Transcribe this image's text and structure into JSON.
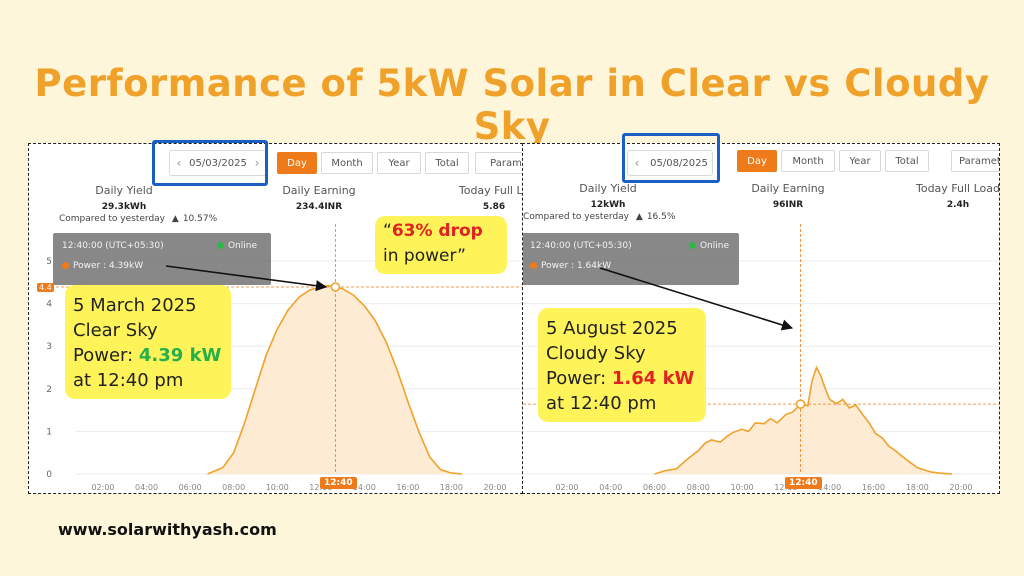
{
  "page": {
    "title": "Performance of 5kW Solar in Clear vs Cloudy Sky",
    "footer": "www.solarwithyash.com",
    "drop_callout": {
      "quote_open": "“",
      "highlight": "63% drop",
      "rest": " in power”"
    }
  },
  "panels": [
    {
      "date": "05/03/2025",
      "tabs": [
        "Day",
        "Month",
        "Year",
        "Total",
        "Param"
      ],
      "stats": {
        "daily_yield_label": "Daily Yield",
        "daily_yield": "29.3kWh",
        "daily_earning_label": "Daily Earning",
        "daily_earning": "234.4INR",
        "full_load_label": "Today Full Lo",
        "full_load": "5.86"
      },
      "compare": "Compared to yesterday",
      "compare_value": "10.57%",
      "tooltip": {
        "time": "12:40:00 (UTC+05:30)",
        "status": "Online",
        "power": "Power : 4.39kW"
      },
      "callout": {
        "line1": "5 March 2025",
        "line2": "Clear Sky",
        "power_label": "Power: ",
        "power_value": "4.39 kW",
        "line4": "at 12:40 pm"
      },
      "time_badge": "12:40",
      "y_badge": "4.4"
    },
    {
      "date": "05/08/2025",
      "tabs": [
        "Day",
        "Month",
        "Year",
        "Total",
        "Paramete"
      ],
      "stats": {
        "daily_yield_label": "Daily Yield",
        "daily_yield": "12kWh",
        "daily_earning_label": "Daily Earning",
        "daily_earning": "96INR",
        "full_load_label": "Today Full Load",
        "full_load": "2.4h"
      },
      "compare": "Compared to yesterday",
      "compare_value": "16.5%",
      "tooltip": {
        "time": "12:40:00 (UTC+05:30)",
        "status": "Online",
        "power": "Power : 1.64kW"
      },
      "callout": {
        "line1": "5 August 2025",
        "line2": "Cloudy Sky",
        "power_label": "Power: ",
        "power_value": "1.64 kW",
        "line4": "at 12:40 pm"
      },
      "time_badge": "12:40",
      "y_badge": ""
    }
  ],
  "colors": {
    "accent": "#ef7a1a",
    "line": "#f0a12a",
    "fill": "#fdecd3",
    "highlight": "#1c5fc4"
  },
  "icons": {
    "prev": "chevron-left-icon",
    "next": "chevron-right-icon",
    "online": "green-dot-icon",
    "power": "orange-dot-icon"
  },
  "chart_data": [
    {
      "type": "area",
      "title": "",
      "x_ticks": [
        "02:00",
        "04:00",
        "06:00",
        "08:00",
        "10:00",
        "12:00",
        "14:00",
        "16:00",
        "18:00",
        "20:00"
      ],
      "y_ticks": [
        "0",
        "1",
        "2",
        "3",
        "4",
        "5"
      ],
      "ylim": [
        0,
        5
      ],
      "xlim": [
        0,
        21
      ],
      "marker": {
        "x": 12.67,
        "y": 4.39
      },
      "series": [
        {
          "x": [
            6.8,
            7.5,
            8.0,
            8.5,
            9.0,
            9.5,
            10.0,
            10.5,
            11.0,
            11.5,
            12.0,
            12.33,
            12.67,
            13.0,
            13.5,
            14.0,
            14.5,
            15.0,
            15.5,
            16.0,
            16.5,
            17.0,
            17.5,
            18.0,
            18.5
          ],
          "y": [
            0,
            0.15,
            0.5,
            1.2,
            2.0,
            2.8,
            3.4,
            3.85,
            4.15,
            4.32,
            4.4,
            4.42,
            4.39,
            4.35,
            4.2,
            3.95,
            3.6,
            3.1,
            2.45,
            1.7,
            1.0,
            0.4,
            0.1,
            0.02,
            0
          ]
        }
      ]
    },
    {
      "type": "area",
      "title": "",
      "x_ticks": [
        "02:00",
        "04:00",
        "06:00",
        "08:00",
        "10:00",
        "12:00",
        "14:00",
        "16:00",
        "18:00",
        "20:00"
      ],
      "y_ticks": [],
      "ylim": [
        0,
        5
      ],
      "xlim": [
        0,
        21
      ],
      "marker": {
        "x": 12.67,
        "y": 1.64
      },
      "series": [
        {
          "x": [
            6.0,
            6.5,
            7.0,
            7.5,
            8.0,
            8.3,
            8.6,
            9.0,
            9.3,
            9.6,
            10.0,
            10.3,
            10.6,
            11.0,
            11.3,
            11.6,
            12.0,
            12.3,
            12.67,
            13.0,
            13.2,
            13.4,
            13.6,
            13.8,
            14.0,
            14.3,
            14.6,
            14.9,
            15.2,
            15.5,
            15.8,
            16.1,
            16.4,
            16.7,
            17.0,
            17.3,
            17.6,
            18.0,
            18.3,
            18.6,
            19.0,
            19.3,
            19.6
          ],
          "y": [
            0,
            0.08,
            0.12,
            0.35,
            0.55,
            0.72,
            0.8,
            0.75,
            0.88,
            0.98,
            1.05,
            1.0,
            1.2,
            1.18,
            1.3,
            1.2,
            1.4,
            1.45,
            1.64,
            1.6,
            2.2,
            2.5,
            2.3,
            2.0,
            1.75,
            1.65,
            1.75,
            1.55,
            1.62,
            1.4,
            1.2,
            0.95,
            0.85,
            0.65,
            0.55,
            0.42,
            0.3,
            0.15,
            0.1,
            0.05,
            0.02,
            0.01,
            0
          ]
        }
      ]
    }
  ]
}
